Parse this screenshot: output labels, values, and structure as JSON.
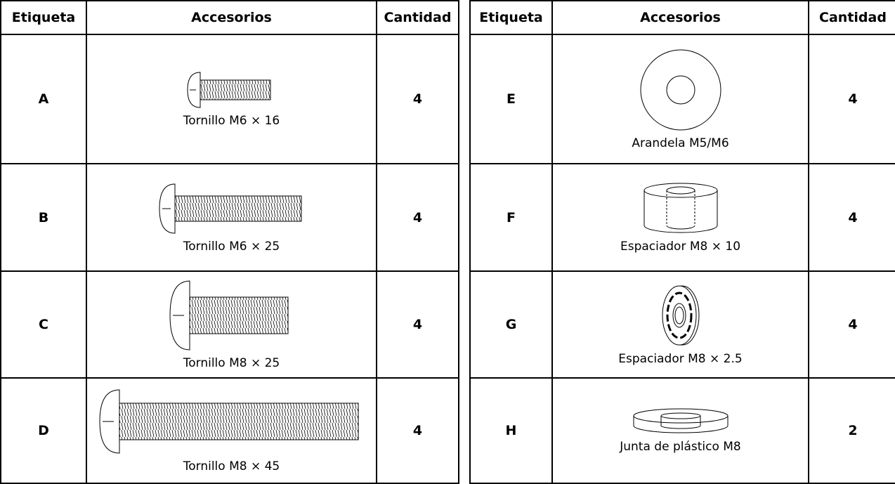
{
  "tables": [
    {
      "header": [
        "Etiqueta",
        "Accesorios",
        "Cantidad"
      ],
      "rows": [
        [
          "A",
          "Tornillo M6 × 16",
          4
        ],
        [
          "B",
          "Tornillo M6 × 25",
          4
        ],
        [
          "C",
          "Tornillo M8 × 25",
          4
        ],
        [
          "D",
          "Tornillo M8 × 45",
          4
        ]
      ]
    },
    {
      "header": [
        "Etiqueta",
        "Accesorios",
        "Cantidad"
      ],
      "rows": [
        [
          "E",
          "Arandela M5/M6",
          4
        ],
        [
          "F",
          "Espaciador M8 × 10",
          4
        ],
        [
          "G",
          "Espaciador M8 × 2.5",
          4
        ],
        [
          "H",
          "Junta de plástico M8",
          2
        ]
      ]
    }
  ]
}
